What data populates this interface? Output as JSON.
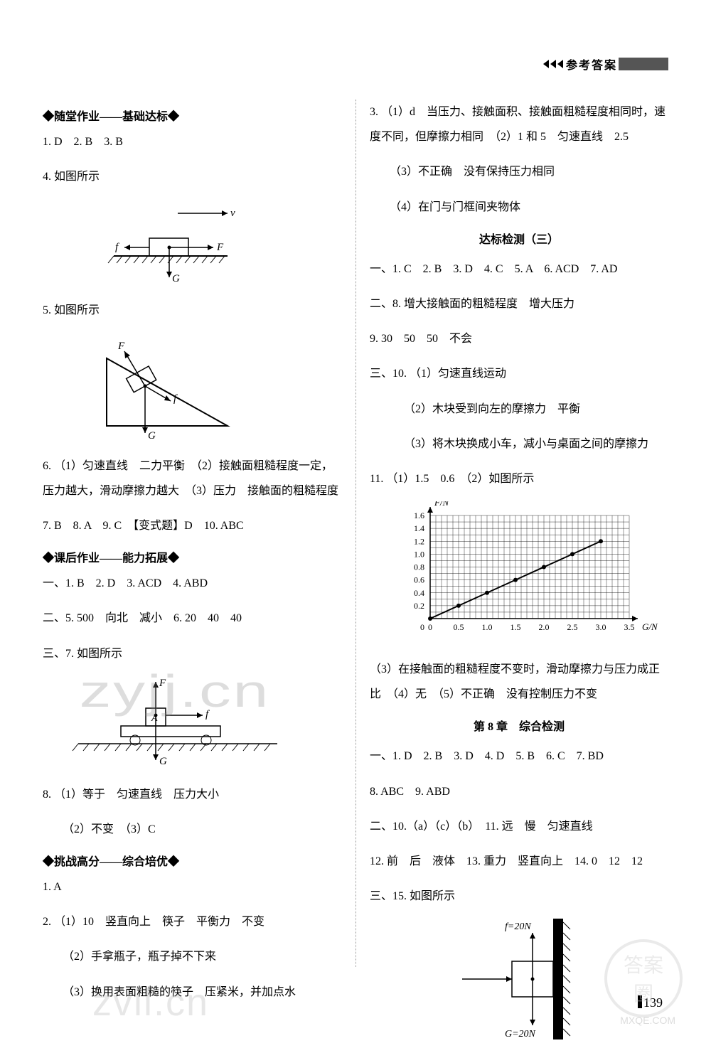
{
  "header": {
    "title": "参考答案"
  },
  "page_number": "139",
  "watermarks": {
    "wm1": "zyjj.cn",
    "wm2": "zvil.cn",
    "wm3a": "答案",
    "wm3b": "圈",
    "wm4": "MXQE.COM"
  },
  "left": {
    "s1_title": "◆随堂作业——基础达标◆",
    "q1": "1. D　2. B　3. B",
    "q4": "4. 如图所示",
    "fig4": {
      "labels": {
        "v": "v",
        "f": "f",
        "F": "F",
        "G": "G"
      },
      "colors": {
        "line": "#000000",
        "fill": "#ffffff"
      }
    },
    "q5": "5. 如图所示",
    "fig5": {
      "labels": {
        "F": "F",
        "f": "f",
        "G": "G"
      },
      "colors": {
        "line": "#000000"
      }
    },
    "q6": "6. （1）匀速直线　二力平衡　（2）接触面粗糙程度一定，压力越大，滑动摩擦力越大　（3）压力　接触面的粗糙程度",
    "q7": "7. B　8. A　9. C　【变式题】D　10. ABC",
    "s2_title": "◆课后作业——能力拓展◆",
    "s2_q1": "一、1. B　2. D　3. ACD　4. ABD",
    "s2_q5": "二、5. 500　向北　减小　6. 20　40　40",
    "s2_q7": "三、7. 如图所示",
    "fig7": {
      "labels": {
        "F": "F",
        "f": "f",
        "G": "G",
        "A": "A"
      },
      "colors": {
        "line": "#000000"
      }
    },
    "q8": "8. （1）等于　匀速直线　压力大小",
    "q8b": "（2）不变　（3）C",
    "s3_title": "◆挑战高分——综合培优◆",
    "s3_q1": "1. A",
    "s3_q2": "2. （1）10　竖直向上　筷子　平衡力　不变",
    "s3_q2b": "（2）手拿瓶子，瓶子掉不下来",
    "s3_q2c": "（3）换用表面粗糙的筷子　压紧米，并加点水"
  },
  "right": {
    "q3": "3. （1）d　当压力、接触面积、接触面粗糙程度相同时，速度不同，但摩擦力相同　（2）1 和 5　匀速直线　2.5",
    "q3b": "（3）不正确　没有保持压力相同",
    "q3c": "（4）在门与门框间夹物体",
    "dabiao_title": "达标检测（三）",
    "db_q1": "一、1. C　2. B　3. D　4. C　5. A　6. ACD　7. AD",
    "db_q8": "二、8. 增大接触面的粗糙程度　增大压力",
    "db_q9": "9. 30　50　50　不会",
    "db_q10": "三、10. （1）匀速直线运动",
    "db_q10b": "（2）木块受到向左的摩擦力　平衡",
    "db_q10c": "（3）将木块换成小车，减小与桌面之间的摩擦力",
    "db_q11": "11. （1）1.5　0.6　（2）如图所示",
    "chart": {
      "type": "line",
      "xlabel": "G/N",
      "ylabel": "F/N",
      "xlim": [
        0,
        3.5
      ],
      "ylim": [
        0,
        1.6
      ],
      "xticks": [
        0,
        0.5,
        1.0,
        1.5,
        2.0,
        2.5,
        3.0,
        3.5
      ],
      "yticks": [
        0.2,
        0.4,
        0.6,
        0.8,
        1.0,
        1.2,
        1.4,
        1.6
      ],
      "grid_color": "#000000",
      "line_color": "#000000",
      "bg": "#ffffff",
      "points": [
        [
          0,
          0
        ],
        [
          0.5,
          0.2
        ],
        [
          1.0,
          0.4
        ],
        [
          1.5,
          0.6
        ],
        [
          2.0,
          0.8
        ],
        [
          2.5,
          1.0
        ],
        [
          3.0,
          1.2
        ]
      ]
    },
    "db_q11b": "（3）在接触面的粗糙程度不变时，滑动摩擦力与压力成正比　（4）无　（5）不正确　没有控制压力不变",
    "ch8_title": "第 8 章　综合检测",
    "ch8_q1": "一、1. D　2. B　3. D　4. D　5. B　6. C　7. BD",
    "ch8_q8": "8. ABC　9. ABD",
    "ch8_q10": "二、10.（a）（c）（b）　11. 远　慢　匀速直线",
    "ch8_q12": "12. 前　后　液体　13. 重力　竖直向上　14. 0　12　12",
    "ch8_q15": "三、15. 如图所示",
    "fig15": {
      "labels": {
        "f": "f=20N",
        "G": "G=20N"
      },
      "colors": {
        "line": "#000000",
        "wall": "#000000"
      }
    }
  }
}
